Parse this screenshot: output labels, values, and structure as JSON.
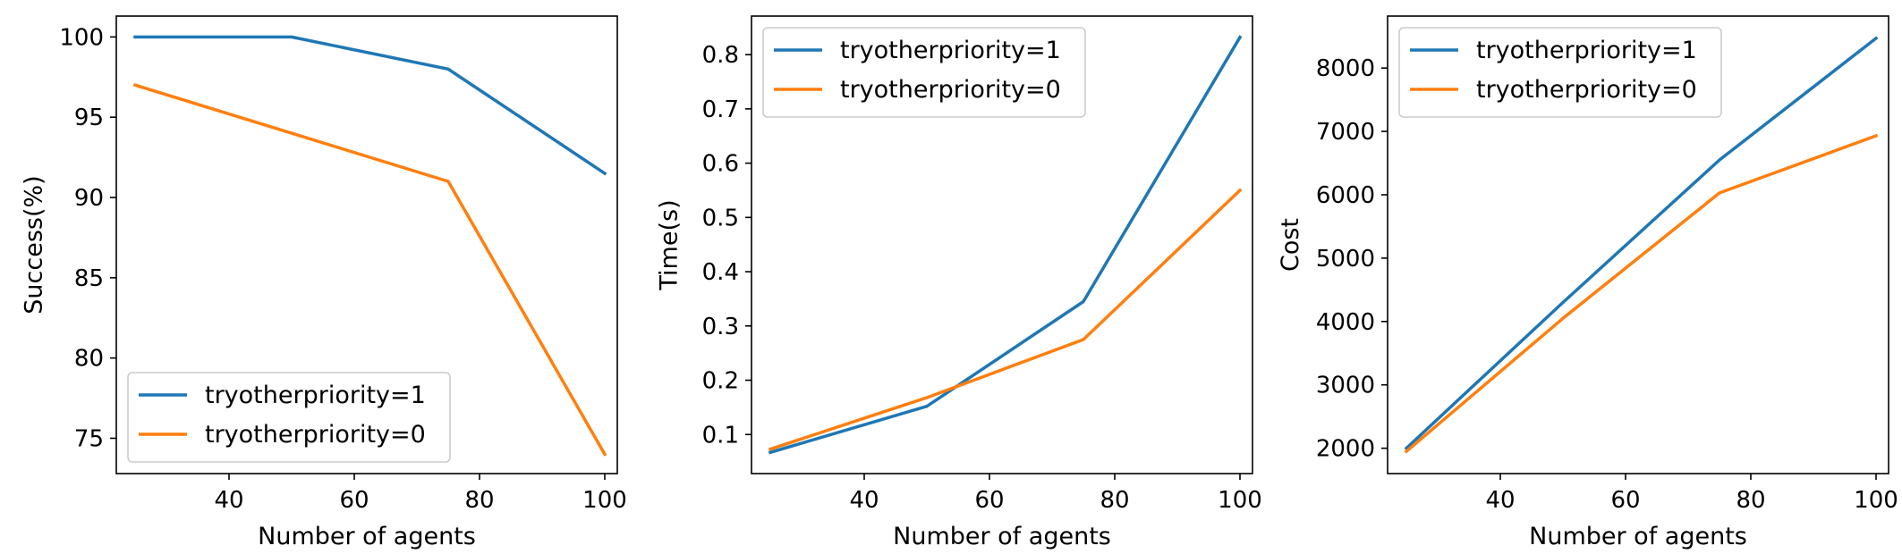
{
  "colors": {
    "series1": "#1f77b4",
    "series2": "#ff7f0e"
  },
  "chart_data": [
    {
      "type": "line",
      "title": "",
      "xlabel": "Number of agents",
      "ylabel": "Success(%)",
      "x": [
        25,
        50,
        75,
        100
      ],
      "xlim": [
        22,
        102
      ],
      "ylim": [
        72.8,
        101.3
      ],
      "xticks": [
        40,
        60,
        80,
        100
      ],
      "yticks": [
        75,
        80,
        85,
        90,
        95,
        100
      ],
      "grid": false,
      "legend_position": "lower-left",
      "series": [
        {
          "name": "tryotherpriority=1",
          "values": [
            100,
            100,
            98,
            91.5
          ]
        },
        {
          "name": "tryotherpriority=0",
          "values": [
            97,
            94,
            91,
            74
          ]
        }
      ]
    },
    {
      "type": "line",
      "title": "",
      "xlabel": "Number of agents",
      "ylabel": "Time(s)",
      "x": [
        25,
        50,
        75,
        100
      ],
      "xlim": [
        22,
        102
      ],
      "ylim": [
        0.028,
        0.871
      ],
      "xticks": [
        40,
        60,
        80,
        100
      ],
      "yticks": [
        0.1,
        0.2,
        0.3,
        0.4,
        0.5,
        0.6,
        0.7,
        0.8
      ],
      "grid": false,
      "legend_position": "upper-left",
      "series": [
        {
          "name": "tryotherpriority=1",
          "values": [
            0.067,
            0.152,
            0.345,
            0.832
          ]
        },
        {
          "name": "tryotherpriority=0",
          "values": [
            0.073,
            0.168,
            0.275,
            0.55
          ]
        }
      ]
    },
    {
      "type": "line",
      "title": "",
      "xlabel": "Number of agents",
      "ylabel": "Cost",
      "x": [
        25,
        50,
        75,
        100
      ],
      "xlim": [
        22,
        102
      ],
      "ylim": [
        1600,
        8820
      ],
      "xticks": [
        40,
        60,
        80,
        100
      ],
      "yticks": [
        2000,
        3000,
        4000,
        5000,
        6000,
        7000,
        8000
      ],
      "grid": false,
      "legend_position": "upper-left",
      "series": [
        {
          "name": "tryotherpriority=1",
          "values": [
            2000,
            4300,
            6550,
            8470
          ]
        },
        {
          "name": "tryotherpriority=0",
          "values": [
            1950,
            4050,
            6030,
            6930
          ]
        }
      ]
    }
  ]
}
